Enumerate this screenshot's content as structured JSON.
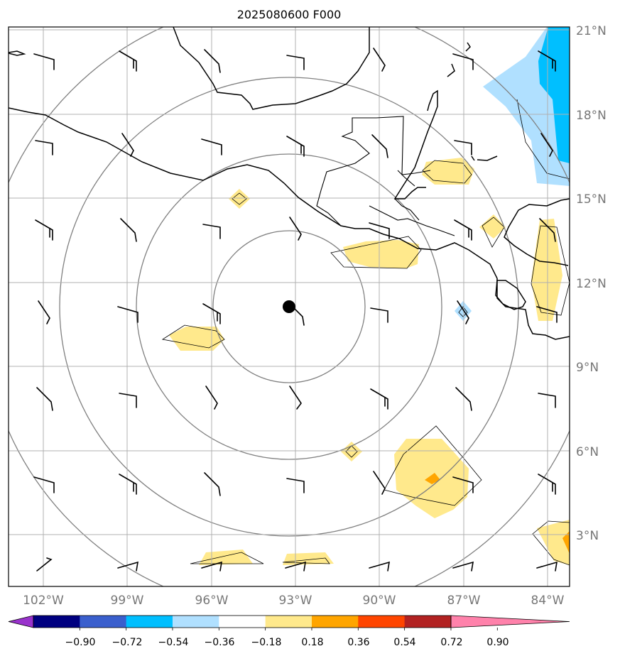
{
  "title": "2025080600 F000",
  "longitude_labels": [
    "102°W",
    "99°W",
    "96°W",
    "93°W",
    "90°W",
    "87°W",
    "84°W"
  ],
  "latitude_labels": [
    "21°N",
    "18°N",
    "15°N",
    "12°N",
    "9°N",
    "6°N",
    "3°N"
  ],
  "map": {
    "lon_range": [
      -104.25,
      -84.1
    ],
    "lat_range": [
      1.1,
      21.1
    ],
    "gridlines": true,
    "center_marker": {
      "lon": -92.75,
      "lat": 11.2
    },
    "range_rings": 4
  },
  "colorbar": {
    "tick_labels": [
      "−0.90",
      "−0.72",
      "−0.54",
      "−0.36",
      "−0.18",
      "0.18",
      "0.36",
      "0.54",
      "0.72",
      "0.90"
    ],
    "colors": [
      "#9932cc",
      "#000080",
      "#3a5fcd",
      "#00bfff",
      "#b0e0ff",
      "#ffffff",
      "#ffe98c",
      "#ffa500",
      "#ff4500",
      "#b22222",
      "#ff82ab"
    ],
    "extend": "both"
  }
}
